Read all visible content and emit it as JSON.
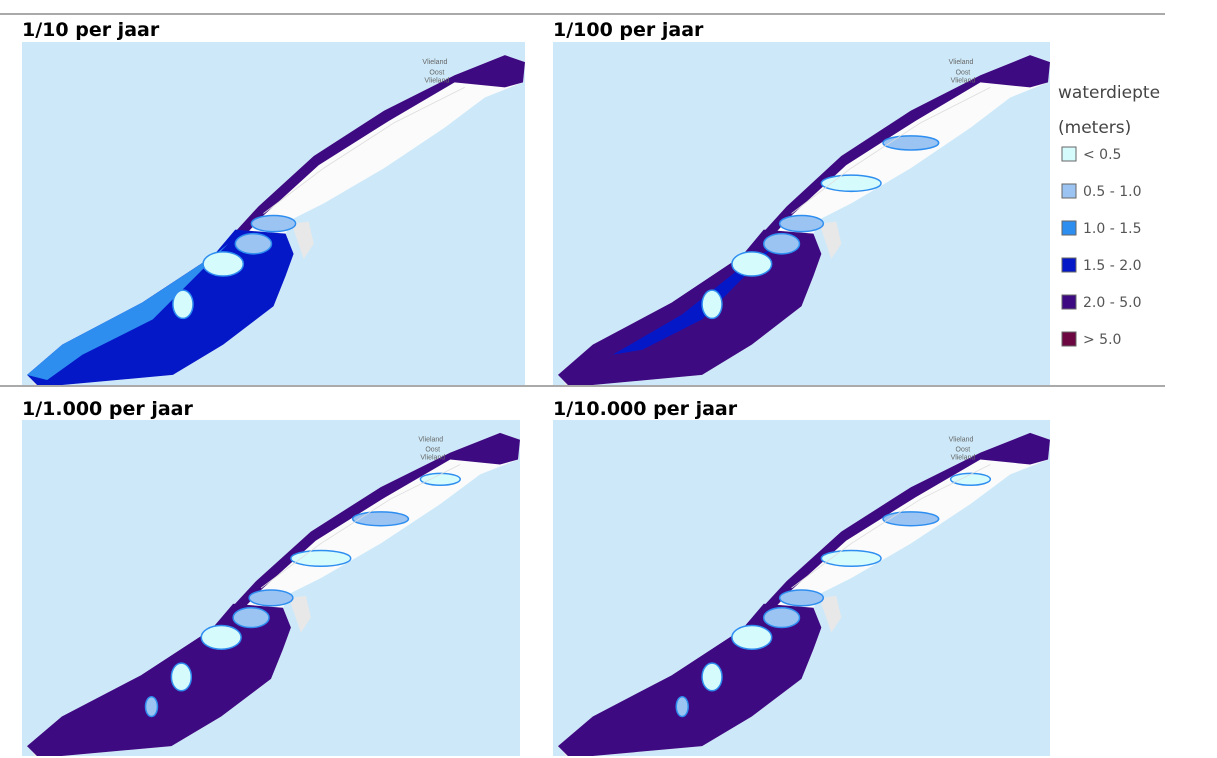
{
  "panels": [
    {
      "title": "1/10 per jaar",
      "places": [
        "Vlieland",
        "Oost",
        "Vlieland"
      ]
    },
    {
      "title": "1/100 per jaar",
      "places": [
        "Vlieland",
        "Oost",
        "Vlieland"
      ]
    },
    {
      "title": "1/1.000 per jaar",
      "places": [
        "Vlieland",
        "Oost",
        "Vlieland"
      ]
    },
    {
      "title": "1/10.000 per jaar",
      "places": [
        "Vlieland",
        "Oost",
        "Vlieland"
      ]
    }
  ],
  "legend": {
    "title": "waterdiepte",
    "subtitle": "(meters)",
    "items": [
      {
        "label": "< 0.5",
        "color": "#d6fbfd"
      },
      {
        "label": "0.5 - 1.0",
        "color": "#9cc4f3"
      },
      {
        "label": "1.0 - 1.5",
        "color": "#2e8ef0"
      },
      {
        "label": "1.5 - 2.0",
        "color": "#0518c8"
      },
      {
        "label": "2.0 - 5.0",
        "color": "#3e0a82"
      },
      {
        "label": "> 5.0",
        "color": "#6c0741"
      }
    ]
  }
}
